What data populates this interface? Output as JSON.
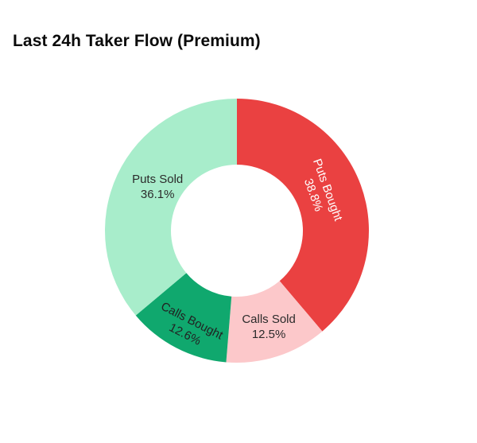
{
  "chart_data": {
    "type": "pie",
    "subtype": "donut",
    "title": "Last 24h Taker Flow (Premium)",
    "hole_ratio": 0.5,
    "direction": "clockwise",
    "start_position": "12-o'clock",
    "legend": "none",
    "background": "#ffffff",
    "categories": [
      "Puts Bought",
      "Calls Sold",
      "Calls Bought",
      "Puts Sold"
    ],
    "values": [
      38.8,
      12.5,
      12.6,
      36.1
    ],
    "value_labels": [
      "38.8%",
      "12.5%",
      "12.6%",
      "36.1%"
    ],
    "colors": [
      "#ea4141",
      "#fcc8ca",
      "#10a86e",
      "#a8edcb"
    ],
    "label_colors": [
      "#ffffff",
      "#2b2b2b",
      "#222222",
      "#2b2b2b"
    ]
  }
}
